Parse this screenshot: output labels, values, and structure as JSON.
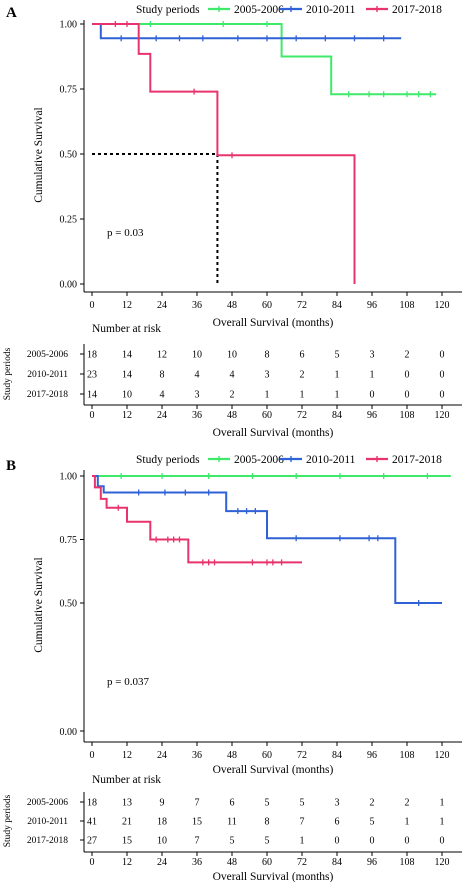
{
  "panels": [
    {
      "label": "A",
      "legend": {
        "title": "Study periods",
        "items": [
          {
            "name": "2005-2006",
            "color": "#3fe96a"
          },
          {
            "name": "2010-2011",
            "color": "#2f62d6"
          },
          {
            "name": "2017-2018",
            "color": "#e8336c"
          }
        ]
      },
      "p_value": "p = 0.03",
      "risk_table": {
        "title": "Number at risk",
        "y_title": "Study periods",
        "x_title": "Overall Survival (months)",
        "groups": [
          "2005-2006",
          "2010-2011",
          "2017-2018"
        ],
        "times": [
          "0",
          "12",
          "24",
          "36",
          "48",
          "60",
          "72",
          "84",
          "96",
          "108",
          "120"
        ],
        "rows": [
          [
            "18",
            "14",
            "12",
            "10",
            "10",
            "8",
            "6",
            "5",
            "3",
            "2",
            "0"
          ],
          [
            "23",
            "14",
            "8",
            "4",
            "4",
            "3",
            "2",
            "1",
            "1",
            "0",
            "0"
          ],
          [
            "14",
            "10",
            "4",
            "3",
            "2",
            "1",
            "1",
            "1",
            "0",
            "0",
            "0"
          ]
        ]
      }
    },
    {
      "label": "B",
      "legend": {
        "title": "Study periods",
        "items": [
          {
            "name": "2005-2006",
            "color": "#3fe96a"
          },
          {
            "name": "2010-2011",
            "color": "#2f62d6"
          },
          {
            "name": "2017-2018",
            "color": "#e8336c"
          }
        ]
      },
      "p_value": "p = 0.037",
      "risk_table": {
        "title": "Number at risk",
        "y_title": "Study periods",
        "x_title": "Overall Survival (months)",
        "groups": [
          "2005-2006",
          "2010-2011",
          "2017-2018"
        ],
        "times": [
          "0",
          "12",
          "24",
          "36",
          "48",
          "60",
          "72",
          "84",
          "96",
          "108",
          "120"
        ],
        "rows": [
          [
            "18",
            "13",
            "9",
            "7",
            "6",
            "5",
            "5",
            "3",
            "2",
            "2",
            "1"
          ],
          [
            "41",
            "21",
            "18",
            "15",
            "11",
            "8",
            "7",
            "6",
            "5",
            "1",
            "1"
          ],
          [
            "27",
            "15",
            "10",
            "7",
            "5",
            "5",
            "1",
            "0",
            "0",
            "0",
            "0"
          ]
        ]
      }
    }
  ],
  "chart_data": [
    {
      "type": "line",
      "step": true,
      "xlabel": "Overall Survival (months)",
      "ylabel": "Cumulative Survival",
      "xlim": [
        -3,
        124
      ],
      "ylim": [
        0,
        1
      ],
      "xticks": [
        0,
        12,
        24,
        36,
        48,
        60,
        72,
        84,
        96,
        108,
        120
      ],
      "yticks": [
        0.0,
        0.25,
        0.5,
        0.75,
        1.0
      ],
      "ytick_labels": [
        "0.00",
        "0.25",
        "0.50",
        "0.75",
        "1.00"
      ],
      "median_line": {
        "x": 43,
        "y": 0.5
      },
      "series": [
        {
          "name": "2005-2006",
          "color": "#3fe96a",
          "points": [
            [
              0,
              1.0
            ],
            [
              65,
              1.0
            ],
            [
              65,
              0.875
            ],
            [
              82,
              0.875
            ],
            [
              82,
              0.73
            ],
            [
              118,
              0.73
            ]
          ],
          "censor_x": [
            20,
            45,
            60,
            88,
            95,
            100,
            108,
            112,
            116
          ]
        },
        {
          "name": "2010-2011",
          "color": "#2f62d6",
          "points": [
            [
              0,
              1.0
            ],
            [
              3,
              1.0
            ],
            [
              3,
              0.945
            ],
            [
              106,
              0.945
            ]
          ],
          "censor_x": [
            10,
            22,
            30,
            38,
            50,
            60,
            70,
            80,
            90,
            100
          ]
        },
        {
          "name": "2017-2018",
          "color": "#e8336c",
          "points": [
            [
              0,
              1.0
            ],
            [
              16,
              1.0
            ],
            [
              16,
              0.885
            ],
            [
              20,
              0.885
            ],
            [
              20,
              0.74
            ],
            [
              43,
              0.74
            ],
            [
              43,
              0.495
            ],
            [
              90,
              0.495
            ],
            [
              90,
              0.0
            ]
          ],
          "censor_x": [
            8,
            12,
            35,
            48
          ]
        }
      ]
    },
    {
      "type": "line",
      "step": true,
      "xlabel": "Overall Survival (months)",
      "ylabel": "Cumulative Survival",
      "xlim": [
        -3,
        124
      ],
      "ylim": [
        0.25,
        1
      ],
      "xticks": [
        0,
        12,
        24,
        36,
        48,
        60,
        72,
        84,
        96,
        108,
        120
      ],
      "yticks": [
        0.25,
        0.5,
        0.75,
        1.0
      ],
      "ytick_labels": [
        "",
        "0.50",
        "0.75",
        "1.00"
      ],
      "series": [
        {
          "name": "2005-2006",
          "color": "#3fe96a",
          "points": [
            [
              0,
              1.0
            ],
            [
              123,
              1.0
            ]
          ],
          "censor_x": [
            10,
            24,
            40,
            55,
            70,
            85,
            100,
            115
          ]
        },
        {
          "name": "2010-2011",
          "color": "#2f62d6",
          "points": [
            [
              0,
              1.0
            ],
            [
              2,
              1.0
            ],
            [
              2,
              0.96
            ],
            [
              4,
              0.96
            ],
            [
              4,
              0.935
            ],
            [
              46,
              0.935
            ],
            [
              46,
              0.862
            ],
            [
              60,
              0.862
            ],
            [
              60,
              0.755
            ],
            [
              104,
              0.755
            ],
            [
              104,
              0.5
            ],
            [
              120,
              0.5
            ]
          ],
          "censor_x": [
            16,
            25,
            32,
            40,
            50,
            53,
            56,
            70,
            85,
            95,
            98,
            112
          ]
        },
        {
          "name": "2017-2018",
          "color": "#e8336c",
          "points": [
            [
              0,
              1.0
            ],
            [
              1,
              1.0
            ],
            [
              1,
              0.955
            ],
            [
              3,
              0.955
            ],
            [
              3,
              0.91
            ],
            [
              5,
              0.91
            ],
            [
              5,
              0.875
            ],
            [
              12,
              0.875
            ],
            [
              12,
              0.82
            ],
            [
              20,
              0.82
            ],
            [
              20,
              0.75
            ],
            [
              33,
              0.75
            ],
            [
              33,
              0.66
            ],
            [
              72,
              0.66
            ]
          ],
          "censor_x": [
            9,
            22,
            26,
            28,
            30,
            38,
            40,
            42,
            55,
            60,
            62,
            65
          ]
        }
      ]
    }
  ]
}
